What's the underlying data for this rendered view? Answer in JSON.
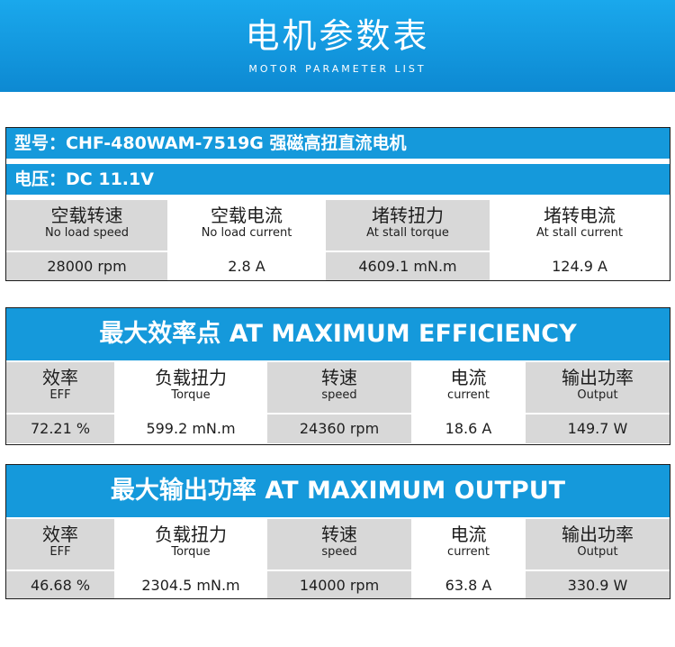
{
  "header": {
    "title": "电机参数表",
    "subtitle": "MOTOR PARAMETER LIST",
    "color": "#1599db"
  },
  "spec": {
    "model_label": "型号：",
    "model_value": "CHF-480WAM-7519G 强磁高扭直流电机",
    "voltage_label": "电压：",
    "voltage_value": "DC 11.1V",
    "columns": [
      {
        "cn": "空载转速",
        "en": "No load speed",
        "value": "28000 rpm"
      },
      {
        "cn": "空载电流",
        "en": "No load current",
        "value": "2.8  A"
      },
      {
        "cn": "堵转扭力",
        "en": "At stall torque",
        "value": "4609.1 mN.m"
      },
      {
        "cn": "堵转电流",
        "en": "At stall current",
        "value": "124.9 A"
      }
    ]
  },
  "max_efficiency": {
    "title": "最大效率点  AT MAXIMUM EFFICIENCY",
    "columns": [
      {
        "cn": "效率",
        "en": "EFF",
        "value": "72.21 %"
      },
      {
        "cn": "负载扭力",
        "en": "Torque",
        "value": "599.2 mN.m"
      },
      {
        "cn": "转速",
        "en": "speed",
        "value": "24360 rpm"
      },
      {
        "cn": "电流",
        "en": "current",
        "value": "18.6 A"
      },
      {
        "cn": "输出功率",
        "en": "Output",
        "value": "149.7 W"
      }
    ]
  },
  "max_output": {
    "title": "最大输出功率  AT MAXIMUM OUTPUT",
    "columns": [
      {
        "cn": "效率",
        "en": "EFF",
        "value": "46.68 %"
      },
      {
        "cn": "负载扭力",
        "en": "Torque",
        "value": "2304.5 mN.m"
      },
      {
        "cn": "转速",
        "en": "speed",
        "value": "14000 rpm"
      },
      {
        "cn": "电流",
        "en": "current",
        "value": "63.8 A"
      },
      {
        "cn": "输出功率",
        "en": "Output",
        "value": "330.9 W"
      }
    ]
  }
}
